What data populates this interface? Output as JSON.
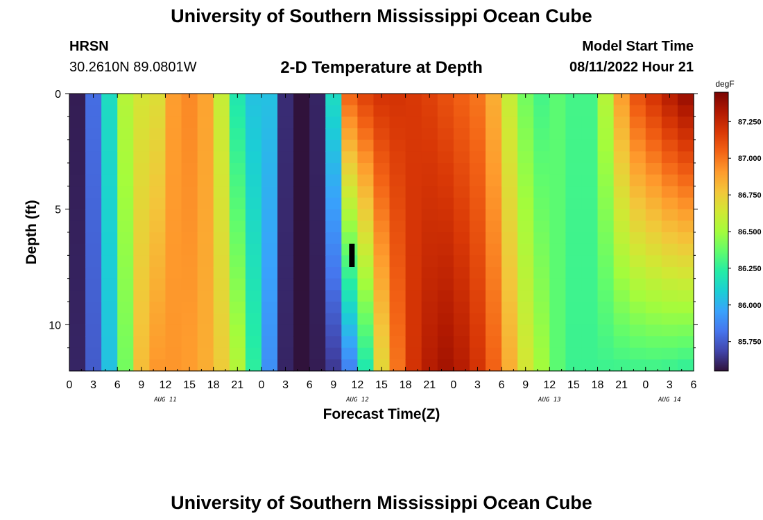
{
  "header": {
    "title": "University of Southern Mississippi Ocean Cube",
    "station_name": "HRSN",
    "station_coords": "30.2610N  89.0801W",
    "subtitle": "2-D Temperature at Depth",
    "model_start_label": "Model Start Time",
    "model_start_value": "08/11/2022 Hour 21"
  },
  "footer": {
    "title": "University of Southern Mississippi Ocean Cube"
  },
  "chart_data": {
    "type": "heatmap",
    "title": "2-D Temperature at Depth",
    "xlabel": "Forecast Time(Z)",
    "ylabel": "Depth (ft)",
    "x_hours_range": [
      0,
      78
    ],
    "ylim": [
      0,
      12
    ],
    "y_inverted": true,
    "x_tick_labels": [
      "0",
      "3",
      "6",
      "9",
      "12",
      "15",
      "18",
      "21",
      "0",
      "3",
      "6",
      "9",
      "12",
      "15",
      "18",
      "21",
      "0",
      "3",
      "6",
      "9",
      "12",
      "15",
      "18",
      "21",
      "0",
      "3",
      "6"
    ],
    "date_labels": [
      {
        "label": "AUG 11",
        "hour": 12
      },
      {
        "label": "AUG 12",
        "hour": 36
      },
      {
        "label": "AUG 13",
        "hour": 60
      },
      {
        "label": "AUG 14",
        "hour": 75
      }
    ],
    "y_tick_labels": [
      "0",
      "5",
      "10"
    ],
    "y_tick_values": [
      0,
      5,
      10
    ],
    "colorbar": {
      "unit": "degF",
      "min": 85.55,
      "max": 87.45,
      "ticks": [
        "87.250",
        "87.000",
        "86.750",
        "86.500",
        "86.250",
        "86.000",
        "85.750"
      ],
      "tick_values": [
        87.25,
        87.0,
        86.75,
        86.5,
        86.25,
        86.0,
        85.75
      ],
      "colors": [
        "#30123b",
        "#4145ab",
        "#4675ed",
        "#39a2fc",
        "#1bcfd4",
        "#24eca6",
        "#61fc6c",
        "#a4fc3c",
        "#d1e834",
        "#f3c63a",
        "#fe9b2d",
        "#f36315",
        "#d93806",
        "#b11901",
        "#7a0403"
      ]
    },
    "depth_levels_ft": [
      0,
      0.5,
      1,
      1.5,
      2,
      2.5,
      3,
      3.5,
      4,
      4.5,
      5,
      5.5,
      6,
      6.5,
      7,
      7.5,
      8,
      8.5,
      9,
      9.5,
      10,
      10.5,
      11,
      11.5,
      12
    ],
    "series": [
      {
        "hours": [
          0,
          2,
          4,
          6,
          8,
          10,
          12,
          14,
          16,
          18,
          20,
          22,
          24,
          26,
          28,
          30,
          32,
          34,
          36,
          38,
          40,
          42,
          44,
          46,
          48,
          50,
          52,
          54,
          56,
          58,
          60,
          62,
          64,
          66,
          68,
          70,
          72,
          74,
          76,
          78
        ],
        "surface_degF": [
          85.58,
          85.8,
          86.15,
          86.55,
          86.65,
          86.68,
          86.9,
          86.95,
          86.88,
          86.6,
          86.2,
          86.05,
          86.05,
          85.62,
          85.55,
          85.6,
          86.15,
          87.05,
          87.15,
          87.2,
          87.2,
          87.18,
          87.15,
          87.1,
          87.05,
          87.0,
          86.85,
          86.6,
          86.4,
          86.3,
          86.35,
          86.3,
          86.3,
          86.55,
          86.9,
          87.1,
          87.2,
          87.3,
          87.38,
          87.42
        ],
        "bottom_degF": [
          85.6,
          85.75,
          86.05,
          86.4,
          86.8,
          86.92,
          86.92,
          86.9,
          86.85,
          86.75,
          86.55,
          86.25,
          85.9,
          85.6,
          85.55,
          85.58,
          85.65,
          85.85,
          86.2,
          86.7,
          87.0,
          87.2,
          87.3,
          87.35,
          87.3,
          87.2,
          87.05,
          86.85,
          86.65,
          86.5,
          86.35,
          86.28,
          86.28,
          86.28,
          86.28,
          86.28,
          86.28,
          86.27,
          86.25,
          86.25
        ]
      }
    ],
    "missing_marker": {
      "hour": 35.3,
      "depth_range_ft": [
        6.5,
        7.5
      ]
    }
  }
}
